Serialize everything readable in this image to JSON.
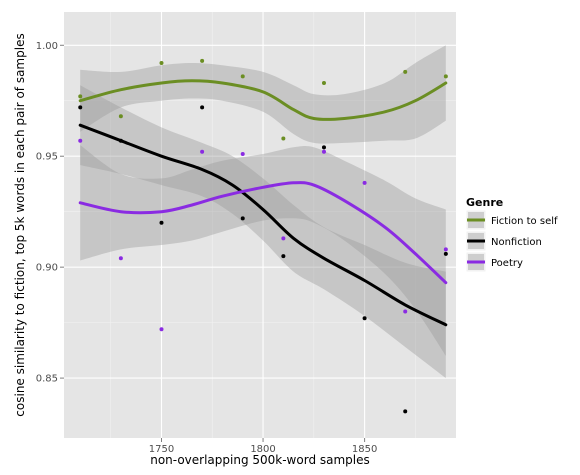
{
  "chart_data": {
    "type": "scatter",
    "title": "",
    "xlabel": "non-overlapping 500k-word samples",
    "ylabel": "cosine similarity to fiction, top 5k words in each pair of samples",
    "xlim": [
      1702,
      1895
    ],
    "ylim": [
      0.823,
      1.015
    ],
    "x_ticks": [
      1750,
      1800,
      1850
    ],
    "y_ticks": [
      0.85,
      0.9,
      0.95,
      1.0
    ],
    "x_tick_labels": [
      "1750",
      "1800",
      "1850"
    ],
    "y_tick_labels": [
      "0.85",
      "0.90",
      "0.95",
      "1.00"
    ],
    "grid": true,
    "legend": {
      "title": "Genre",
      "position": "right",
      "entries": [
        "Fiction to self",
        "Nonfiction",
        "Poetry"
      ]
    },
    "series": [
      {
        "name": "Fiction to self",
        "color": "#6b8e23",
        "points": [
          [
            1710,
            0.977
          ],
          [
            1730,
            0.968
          ],
          [
            1750,
            0.992
          ],
          [
            1770,
            0.993
          ],
          [
            1790,
            0.986
          ],
          [
            1810,
            0.958
          ],
          [
            1830,
            0.983
          ],
          [
            1870,
            0.988
          ],
          [
            1890,
            0.986
          ]
        ],
        "smooth": [
          [
            1710,
            0.975
          ],
          [
            1730,
            0.98
          ],
          [
            1750,
            0.983
          ],
          [
            1765,
            0.984
          ],
          [
            1780,
            0.983
          ],
          [
            1800,
            0.979
          ],
          [
            1815,
            0.971
          ],
          [
            1825,
            0.967
          ],
          [
            1840,
            0.967
          ],
          [
            1860,
            0.97
          ],
          [
            1875,
            0.975
          ],
          [
            1890,
            0.983
          ]
        ],
        "ribbon_upper": [
          [
            1710,
            0.989
          ],
          [
            1730,
            0.988
          ],
          [
            1750,
            0.991
          ],
          [
            1765,
            0.992
          ],
          [
            1780,
            0.991
          ],
          [
            1800,
            0.988
          ],
          [
            1815,
            0.982
          ],
          [
            1825,
            0.978
          ],
          [
            1840,
            0.978
          ],
          [
            1860,
            0.983
          ],
          [
            1875,
            0.992
          ],
          [
            1890,
            1.0
          ]
        ],
        "ribbon_lower": [
          [
            1710,
            0.961
          ],
          [
            1730,
            0.972
          ],
          [
            1750,
            0.975
          ],
          [
            1765,
            0.976
          ],
          [
            1780,
            0.975
          ],
          [
            1800,
            0.97
          ],
          [
            1815,
            0.96
          ],
          [
            1825,
            0.956
          ],
          [
            1840,
            0.956
          ],
          [
            1860,
            0.957
          ],
          [
            1875,
            0.958
          ],
          [
            1890,
            0.966
          ]
        ]
      },
      {
        "name": "Nonfiction",
        "color": "#000000",
        "points": [
          [
            1710,
            0.972
          ],
          [
            1730,
            0.957
          ],
          [
            1750,
            0.92
          ],
          [
            1770,
            0.972
          ],
          [
            1790,
            0.922
          ],
          [
            1810,
            0.905
          ],
          [
            1830,
            0.954
          ],
          [
            1850,
            0.877
          ],
          [
            1870,
            0.835
          ],
          [
            1890,
            0.906
          ]
        ],
        "smooth": [
          [
            1710,
            0.964
          ],
          [
            1730,
            0.957
          ],
          [
            1750,
            0.95
          ],
          [
            1770,
            0.944
          ],
          [
            1785,
            0.937
          ],
          [
            1800,
            0.926
          ],
          [
            1815,
            0.913
          ],
          [
            1830,
            0.904
          ],
          [
            1850,
            0.894
          ],
          [
            1870,
            0.883
          ],
          [
            1890,
            0.874
          ]
        ],
        "ribbon_upper": [
          [
            1710,
            0.982
          ],
          [
            1730,
            0.972
          ],
          [
            1750,
            0.963
          ],
          [
            1770,
            0.956
          ],
          [
            1785,
            0.95
          ],
          [
            1800,
            0.94
          ],
          [
            1815,
            0.928
          ],
          [
            1830,
            0.918
          ],
          [
            1850,
            0.91
          ],
          [
            1870,
            0.902
          ],
          [
            1890,
            0.898
          ]
        ],
        "ribbon_lower": [
          [
            1710,
            0.946
          ],
          [
            1730,
            0.942
          ],
          [
            1750,
            0.937
          ],
          [
            1770,
            0.932
          ],
          [
            1785,
            0.924
          ],
          [
            1800,
            0.912
          ],
          [
            1815,
            0.898
          ],
          [
            1830,
            0.89
          ],
          [
            1850,
            0.878
          ],
          [
            1870,
            0.864
          ],
          [
            1890,
            0.85
          ]
        ]
      },
      {
        "name": "Poetry",
        "color": "#8a2be2",
        "points": [
          [
            1710,
            0.957
          ],
          [
            1730,
            0.904
          ],
          [
            1750,
            0.872
          ],
          [
            1770,
            0.952
          ],
          [
            1790,
            0.951
          ],
          [
            1810,
            0.913
          ],
          [
            1830,
            0.952
          ],
          [
            1850,
            0.938
          ],
          [
            1870,
            0.88
          ],
          [
            1890,
            0.908
          ]
        ],
        "smooth": [
          [
            1710,
            0.929
          ],
          [
            1730,
            0.925
          ],
          [
            1750,
            0.925
          ],
          [
            1765,
            0.928
          ],
          [
            1780,
            0.932
          ],
          [
            1800,
            0.936
          ],
          [
            1815,
            0.938
          ],
          [
            1825,
            0.937
          ],
          [
            1840,
            0.93
          ],
          [
            1860,
            0.918
          ],
          [
            1875,
            0.906
          ],
          [
            1890,
            0.893
          ]
        ],
        "ribbon_upper": [
          [
            1710,
            0.955
          ],
          [
            1730,
            0.942
          ],
          [
            1750,
            0.94
          ],
          [
            1765,
            0.944
          ],
          [
            1780,
            0.948
          ],
          [
            1800,
            0.951
          ],
          [
            1815,
            0.954
          ],
          [
            1825,
            0.954
          ],
          [
            1840,
            0.948
          ],
          [
            1860,
            0.939
          ],
          [
            1875,
            0.931
          ],
          [
            1890,
            0.926
          ]
        ],
        "ribbon_lower": [
          [
            1710,
            0.903
          ],
          [
            1730,
            0.908
          ],
          [
            1750,
            0.91
          ],
          [
            1765,
            0.912
          ],
          [
            1780,
            0.916
          ],
          [
            1800,
            0.921
          ],
          [
            1815,
            0.922
          ],
          [
            1825,
            0.92
          ],
          [
            1840,
            0.912
          ],
          [
            1860,
            0.897
          ],
          [
            1875,
            0.881
          ],
          [
            1890,
            0.86
          ]
        ]
      }
    ]
  }
}
